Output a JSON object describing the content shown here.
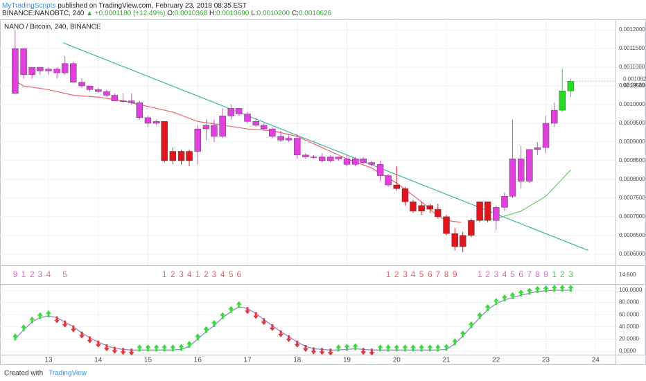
{
  "header": {
    "author": "MyTradingScripts",
    "published": "published on TradingView.com, February 23, 2018 08:35 EST",
    "symbol": "BINANCE:NANOBTC, 240",
    "change": "▲ +0.0001180 (+12.49%)",
    "ohlc": [
      {
        "k": "O:",
        "v": "0.0010368"
      },
      {
        "k": "H:",
        "v": "0.0010690"
      },
      {
        "k": "L:",
        "v": "0.0010200"
      },
      {
        "k": "C:",
        "v": "0.0010626"
      }
    ]
  },
  "footer": {
    "created": "Created with",
    "brand": "TradingView"
  },
  "chart_data": [
    {
      "type": "candlestick",
      "title": "NANO / Bitcoin, 240, BINANCE",
      "x": [
        12.33,
        12.5,
        12.67,
        12.83,
        13,
        13.17,
        13.33,
        13.5,
        13.67,
        13.83,
        14,
        14.17,
        14.33,
        14.5,
        14.67,
        14.83,
        15,
        15.17,
        15.33,
        15.5,
        15.67,
        15.83,
        16,
        16.17,
        16.33,
        16.5,
        16.67,
        16.83,
        17,
        17.17,
        17.33,
        17.5,
        17.67,
        17.83,
        18,
        18.17,
        18.33,
        18.5,
        18.67,
        18.83,
        19,
        19.17,
        19.33,
        19.5,
        19.67,
        19.83,
        20,
        20.17,
        20.33,
        20.5,
        20.67,
        20.83,
        21,
        21.17,
        21.33,
        21.5,
        21.67,
        21.83,
        22,
        22.17,
        22.33,
        22.5,
        22.67,
        22.83,
        23,
        23.17,
        23.33,
        23.5
      ],
      "open": [
        0.00103,
        0.00115,
        0.00108,
        0.0011,
        0.00109,
        0.001095,
        0.001085,
        0.00111,
        0.00106,
        0.00105,
        0.00104,
        0.001035,
        0.001025,
        0.00101,
        0.00101,
        0.001005,
        0.000965,
        0.00095,
        0.000955,
        0.00085,
        0.000875,
        0.00085,
        0.000875,
        0.000935,
        0.000945,
        0.000915,
        0.00097,
        0.00099,
        0.000975,
        0.000955,
        0.000945,
        0.000935,
        0.000915,
        0.000905,
        0.00091,
        0.000865,
        0.00086,
        0.00086,
        0.00085,
        0.00086,
        0.000855,
        0.00084,
        0.000855,
        0.000845,
        0.00084,
        0.00081,
        0.000785,
        0.000775,
        0.00074,
        0.000715,
        0.00073,
        0.00072,
        0.0007,
        0.000655,
        0.00062,
        0.00065,
        0.00069,
        0.00074,
        0.00069,
        0.000725,
        0.000755,
        0.000855,
        0.000795,
        0.00088,
        0.000885,
        0.00095,
        0.000985,
        0.0010368
      ],
      "high": [
        0.0012,
        0.00115,
        0.0011,
        0.0011,
        0.0011,
        0.0011,
        0.00113,
        0.001115,
        0.00107,
        0.00105,
        0.001045,
        0.00104,
        0.00103,
        0.00103,
        0.00103,
        0.00101,
        0.00097,
        0.00096,
        0.000955,
        0.000885,
        0.00088,
        0.00088,
        0.000945,
        0.00096,
        0.00096,
        0.00099,
        0.001,
        0.00099,
        0.00098,
        0.000965,
        0.00095,
        0.00094,
        0.00093,
        0.00092,
        0.00092,
        0.00087,
        0.000865,
        0.00087,
        0.000865,
        0.00086,
        0.000865,
        0.00086,
        0.00086,
        0.00085,
        0.00085,
        0.000815,
        0.000835,
        0.00078,
        0.000745,
        0.00074,
        0.000735,
        0.000735,
        0.000705,
        0.00067,
        0.00066,
        0.000695,
        0.00074,
        0.00074,
        0.00073,
        0.000765,
        0.00096,
        0.00089,
        0.00088,
        0.0009,
        0.00097,
        0.001005,
        0.001095,
        0.001069
      ],
      "low": [
        0.00103,
        0.00107,
        0.00107,
        0.00108,
        0.00108,
        0.00107,
        0.00108,
        0.00106,
        0.001045,
        0.001035,
        0.00103,
        0.00102,
        0.00101,
        0.001005,
        0.001,
        0.00096,
        0.00094,
        0.000945,
        0.000845,
        0.00084,
        0.00084,
        0.000835,
        0.00084,
        0.000905,
        0.0009,
        0.00091,
        0.00096,
        0.00097,
        0.00095,
        0.00094,
        0.00093,
        0.00091,
        0.0009,
        0.0009,
        0.000855,
        0.000855,
        0.000855,
        0.000845,
        0.000845,
        0.00085,
        0.000835,
        0.000835,
        0.00084,
        0.000835,
        0.000795,
        0.00078,
        0.00077,
        0.00073,
        0.00071,
        0.000705,
        0.00071,
        0.000695,
        0.00065,
        0.00061,
        0.000605,
        0.000645,
        0.000685,
        0.000685,
        0.000665,
        0.000715,
        0.00075,
        0.000775,
        0.00079,
        0.000865,
        0.00087,
        0.00094,
        0.00098,
        0.00102
      ],
      "close": [
        0.00115,
        0.00108,
        0.0011,
        0.00109,
        0.001095,
        0.001085,
        0.00111,
        0.00106,
        0.00105,
        0.00104,
        0.001035,
        0.001025,
        0.00101,
        0.00101,
        0.001005,
        0.000965,
        0.00095,
        0.000955,
        0.00085,
        0.000875,
        0.00085,
        0.000875,
        0.000935,
        0.000945,
        0.000915,
        0.00097,
        0.00099,
        0.000975,
        0.000955,
        0.000945,
        0.000935,
        0.000915,
        0.000905,
        0.00091,
        0.000865,
        0.00086,
        0.00086,
        0.00085,
        0.00086,
        0.000855,
        0.00084,
        0.000855,
        0.000845,
        0.00084,
        0.00081,
        0.000785,
        0.000775,
        0.00074,
        0.000715,
        0.00073,
        0.00072,
        0.0007,
        0.000655,
        0.00062,
        0.00065,
        0.00069,
        0.00074,
        0.00069,
        0.000725,
        0.000755,
        0.000855,
        0.000795,
        0.00088,
        0.000885,
        0.00095,
        0.000985,
        0.0010368,
        0.0010626
      ],
      "colors": [
        "#e33fe0",
        "#e33fe0",
        "#e33fe0",
        "#e33fe0",
        "#e33fe0",
        "#e33fe0",
        "#e33fe0",
        "#e33fe0",
        "#e33fe0",
        "#e33fe0",
        "#e33fe0",
        "#e33fe0",
        "#e33fe0",
        "#e33fe0",
        "#e33fe0",
        "#e33fe0",
        "#e33fe0",
        "#e33fe0",
        "#e3141b",
        "#e3141b",
        "#e3141b",
        "#e3141b",
        "#e33fe0",
        "#e33fe0",
        "#e33fe0",
        "#e33fe0",
        "#e33fe0",
        "#e33fe0",
        "#e33fe0",
        "#e33fe0",
        "#e33fe0",
        "#e33fe0",
        "#e33fe0",
        "#e33fe0",
        "#e33fe0",
        "#e33fe0",
        "#e33fe0",
        "#e33fe0",
        "#e33fe0",
        "#e33fe0",
        "#e33fe0",
        "#e33fe0",
        "#e33fe0",
        "#e33fe0",
        "#e33fe0",
        "#e33fe0",
        "#e3141b",
        "#e3141b",
        "#e3141b",
        "#e3141b",
        "#e3141b",
        "#e3141b",
        "#e3141b",
        "#e3141b",
        "#e3141b",
        "#e3141b",
        "#e3141b",
        "#e3141b",
        "#e33fe0",
        "#e33fe0",
        "#e33fe0",
        "#e33fe0",
        "#e33fe0",
        "#e33fe0",
        "#e33fe0",
        "#e33fe0",
        "#1ee01e",
        "#1ee01e"
      ],
      "lines": [
        {
          "color": "#f0606a",
          "x": [
            12.3,
            12.5,
            13,
            13.5,
            14,
            14.5,
            15,
            15.5,
            16,
            16.5,
            17,
            17.5,
            18,
            18.5,
            19,
            19.5,
            20,
            20.5,
            20.8,
            21,
            21.3
          ],
          "values": [
            0.001065,
            0.00105,
            0.00104,
            0.001025,
            0.00102,
            0.00101,
            0.000995,
            0.00098,
            0.000955,
            0.000945,
            0.000935,
            0.00093,
            0.000915,
            0.000885,
            0.000855,
            0.00083,
            0.00079,
            0.00074,
            0.000705,
            0.00069,
            0.000685
          ]
        },
        {
          "color": "#5ad65a",
          "x": [
            21.6,
            22,
            22.5,
            23,
            23.5
          ],
          "values": [
            0.00069,
            0.000695,
            0.000715,
            0.000755,
            0.000825
          ]
        },
        {
          "color": "#3ab09e",
          "x": [
            13.3,
            23.85
          ],
          "values": [
            0.001165,
            0.00061
          ]
        }
      ],
      "xlim": [
        12.025,
        24.4
      ],
      "xticks": [
        13,
        14,
        15,
        16,
        17,
        18,
        19,
        20,
        21,
        22,
        23,
        24
      ],
      "ylim": [
        0.00057,
        0.001228
      ],
      "yticks": [
        {
          "value": 0.0006,
          "label": "0.0006000"
        },
        {
          "value": 0.00065,
          "label": "0.0006500"
        },
        {
          "value": 0.0007,
          "label": "0.0007000"
        },
        {
          "value": 0.00075,
          "label": "0.0007500"
        },
        {
          "value": 0.0008,
          "label": "0.0008000"
        },
        {
          "value": 0.00085,
          "label": "0.0008500"
        },
        {
          "value": 0.0009,
          "label": "0.0009000"
        },
        {
          "value": 0.00095,
          "label": "0.0009500"
        },
        {
          "value": 0.001,
          "label": "0.0010000"
        },
        {
          "value": 0.00105,
          "label": "0.0010500"
        },
        {
          "value": 0.0011,
          "label": "0.0011000"
        },
        {
          "value": 0.00115,
          "label": "0.0011500"
        },
        {
          "value": 0.0012,
          "label": "0.0012000"
        }
      ],
      "price_tag": {
        "value": 0.0010626,
        "label": "0.0010626"
      },
      "countdown": "02:24:39",
      "grid": true
    },
    {
      "type": "counts",
      "panel_label": "14.600",
      "counts": [
        9,
        1,
        2,
        3,
        4,
        null,
        5,
        null,
        null,
        null,
        null,
        null,
        null,
        null,
        null,
        null,
        null,
        null,
        1,
        2,
        3,
        4,
        1,
        2,
        3,
        4,
        5,
        6,
        null,
        null,
        null,
        null,
        null,
        null,
        null,
        null,
        null,
        null,
        null,
        null,
        null,
        null,
        null,
        null,
        null,
        1,
        2,
        3,
        4,
        5,
        6,
        7,
        8,
        9,
        null,
        null,
        1,
        2,
        3,
        4,
        5,
        6,
        7,
        8,
        9,
        1,
        2,
        3
      ],
      "colors": [
        "#e060d0",
        "#e060d0",
        "#e060d0",
        "#e060d0",
        "#e060d0",
        null,
        "#e060d0",
        null,
        null,
        null,
        null,
        null,
        null,
        null,
        null,
        null,
        null,
        null,
        "#e8606a",
        "#e8606a",
        "#e8606a",
        "#e8606a",
        "#e8606a",
        "#e8606a",
        "#e8606a",
        "#e8606a",
        "#e8606a",
        "#e8606a",
        null,
        null,
        null,
        null,
        null,
        null,
        null,
        null,
        null,
        null,
        null,
        null,
        null,
        null,
        null,
        null,
        null,
        "#e8606a",
        "#e8606a",
        "#e8606a",
        "#e8606a",
        "#e8606a",
        "#e8606a",
        "#e8606a",
        "#e8606a",
        "#e8606a",
        null,
        null,
        "#e060d0",
        "#e060d0",
        "#e060d0",
        "#e060d0",
        "#e060d0",
        "#e060d0",
        "#e060d0",
        "#e060d0",
        "#e060d0",
        "#3ed43e",
        "#3ed43e",
        "#3ed43e"
      ]
    },
    {
      "type": "oscillator",
      "color": "#8b7fd6",
      "up_color": "#33dd33",
      "down_color": "#e8343a",
      "values": [
        20,
        35,
        48,
        55,
        58,
        55,
        48,
        40,
        30,
        22,
        15,
        9,
        5,
        3,
        2,
        2,
        2,
        2,
        2,
        2,
        3,
        8,
        20,
        32,
        42,
        55,
        65,
        73,
        70,
        62,
        52,
        42,
        32,
        24,
        15,
        8,
        4,
        3,
        2,
        2,
        3,
        4,
        3,
        2,
        2,
        2,
        2,
        2,
        2,
        2,
        2,
        2,
        3,
        12,
        25,
        40,
        55,
        68,
        78,
        84,
        88,
        92,
        95,
        98,
        99,
        100,
        100,
        100
      ],
      "ylim": [
        -5.7,
        109.1
      ],
      "yticks": [
        {
          "value": 0,
          "label": "0.0000"
        },
        {
          "value": 20,
          "label": "20.0000"
        },
        {
          "value": 40,
          "label": "40.0000"
        },
        {
          "value": 60,
          "label": "60.0000"
        },
        {
          "value": 80,
          "label": "80.0000"
        },
        {
          "value": 100,
          "label": "100.0000"
        }
      ]
    }
  ]
}
